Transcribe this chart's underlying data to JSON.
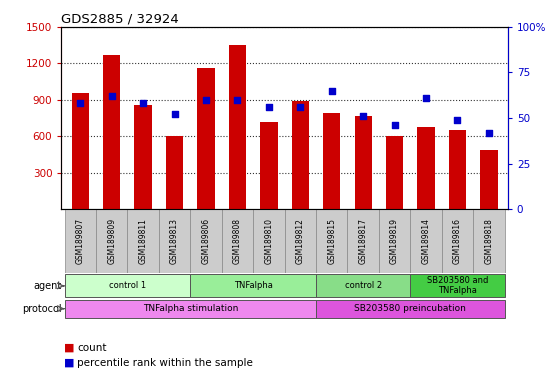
{
  "title": "GDS2885 / 32924",
  "samples": [
    "GSM189807",
    "GSM189809",
    "GSM189811",
    "GSM189813",
    "GSM189806",
    "GSM189808",
    "GSM189810",
    "GSM189812",
    "GSM189815",
    "GSM189817",
    "GSM189819",
    "GSM189814",
    "GSM189816",
    "GSM189818"
  ],
  "counts": [
    960,
    1265,
    855,
    600,
    1160,
    1350,
    720,
    890,
    790,
    770,
    600,
    680,
    655,
    490
  ],
  "percentiles": [
    58,
    62,
    58,
    52,
    60,
    60,
    56,
    56,
    65,
    51,
    46,
    61,
    49,
    42
  ],
  "ylim_left": [
    0,
    1500
  ],
  "ylim_right": [
    0,
    100
  ],
  "yticks_left": [
    300,
    600,
    900,
    1200,
    1500
  ],
  "yticks_right": [
    0,
    25,
    50,
    75,
    100
  ],
  "bar_color": "#cc0000",
  "dot_color": "#0000cc",
  "agent_groups": [
    {
      "label": "control 1",
      "start": 0,
      "end": 4,
      "color": "#ccffcc"
    },
    {
      "label": "TNFalpha",
      "start": 4,
      "end": 8,
      "color": "#99ee99"
    },
    {
      "label": "control 2",
      "start": 8,
      "end": 11,
      "color": "#88dd88"
    },
    {
      "label": "SB203580 and\nTNFalpha",
      "start": 11,
      "end": 14,
      "color": "#44cc44"
    }
  ],
  "protocol_groups": [
    {
      "label": "TNFalpha stimulation",
      "start": 0,
      "end": 8,
      "color": "#ee88ee"
    },
    {
      "label": "SB203580 preincubation",
      "start": 8,
      "end": 14,
      "color": "#dd55dd"
    }
  ],
  "bg_color": "#ffffff",
  "sample_cell_color": "#cccccc",
  "legend_count_color": "#cc0000",
  "legend_pct_color": "#0000cc"
}
